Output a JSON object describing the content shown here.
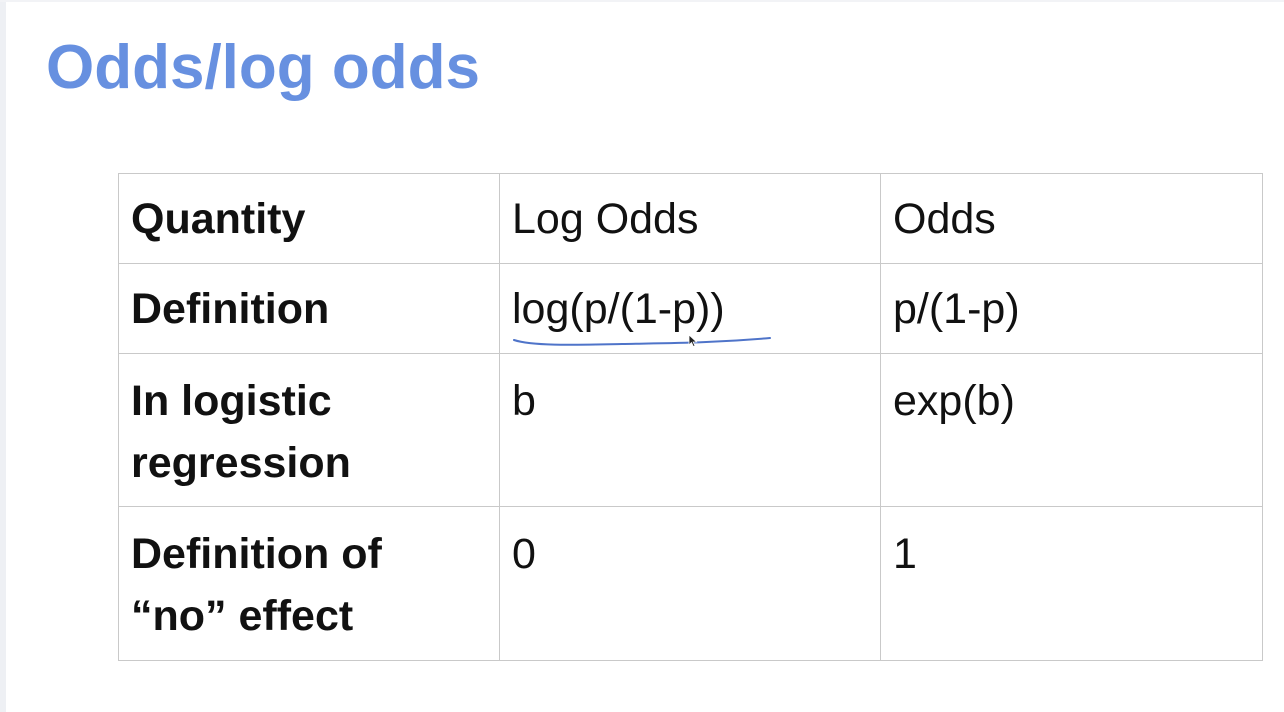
{
  "slide": {
    "title": "Odds/log odds"
  },
  "table": {
    "rows": [
      {
        "label": "Quantity",
        "log_odds": "Log Odds",
        "odds": "Odds"
      },
      {
        "label": "Definition",
        "log_odds": "log(p/(1-p))",
        "odds": "p/(1-p)"
      },
      {
        "label": "In logistic regression",
        "log_odds": "b",
        "odds": "exp(b)"
      },
      {
        "label": "Definition of “no” effect",
        "log_odds": "0",
        "odds": "1"
      }
    ]
  },
  "colors": {
    "title": "#6790e0",
    "annotation": "#4f74c9",
    "border": "#c9c9c9",
    "text": "#111111"
  },
  "icons": {
    "pointer": "mouse-cursor-icon"
  }
}
